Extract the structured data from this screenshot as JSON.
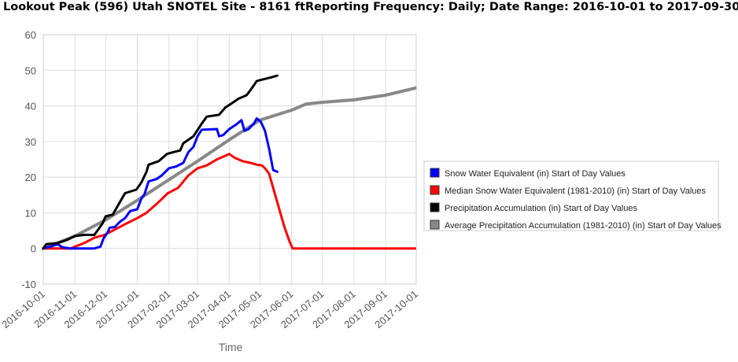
{
  "title": "Lookout Peak (596) Utah  SNOTEL Site - 8161 ftReporting Frequency: Daily; Date Range: 2016-10-01 to 2017-09-30",
  "chart_data": {
    "type": "line",
    "title": "Lookout Peak (596) Utah  SNOTEL Site - 8161 ftReporting Frequency: Daily; Date Range: 2016-10-01 to 2017-09-30",
    "xlabel": "Time",
    "ylabel": "",
    "x_type": "date",
    "xlim": [
      "2016-10-01",
      "2017-10-01"
    ],
    "ylim": [
      -10,
      60
    ],
    "y_ticks": [
      -10,
      0,
      10,
      20,
      30,
      40,
      50,
      60
    ],
    "x_ticks": [
      "2016-10-01",
      "2016-11-01",
      "2016-12-01",
      "2017-01-01",
      "2017-02-01",
      "2017-03-01",
      "2017-04-01",
      "2017-05-01",
      "2017-06-01",
      "2017-07-01",
      "2017-08-01",
      "2017-09-01",
      "2017-10-01"
    ],
    "grid": true,
    "legend_position": "right",
    "series": [
      {
        "name": "Snow Water Equivalent (in) Start of Day Values",
        "color": "#0000ff",
        "points": [
          [
            "2016-10-01",
            0
          ],
          [
            "2016-10-08",
            0.5
          ],
          [
            "2016-10-15",
            1.2
          ],
          [
            "2016-10-20",
            0.3
          ],
          [
            "2016-10-28",
            0
          ],
          [
            "2016-11-10",
            0
          ],
          [
            "2016-11-20",
            0
          ],
          [
            "2016-11-26",
            0.5
          ],
          [
            "2016-11-29",
            2.8
          ],
          [
            "2016-12-03",
            4.5
          ],
          [
            "2016-12-05",
            5.8
          ],
          [
            "2016-12-10",
            6
          ],
          [
            "2016-12-15",
            7.5
          ],
          [
            "2016-12-20",
            8.5
          ],
          [
            "2016-12-25",
            10.5
          ],
          [
            "2017-01-01",
            11
          ],
          [
            "2017-01-05",
            14
          ],
          [
            "2017-01-08",
            15.2
          ],
          [
            "2017-01-12",
            18.8
          ],
          [
            "2017-01-20",
            19.5
          ],
          [
            "2017-01-25",
            20.5
          ],
          [
            "2017-02-01",
            22.5
          ],
          [
            "2017-02-08",
            23
          ],
          [
            "2017-02-15",
            24
          ],
          [
            "2017-02-20",
            27
          ],
          [
            "2017-02-25",
            28.5
          ],
          [
            "2017-03-01",
            31.5
          ],
          [
            "2017-03-05",
            33.3
          ],
          [
            "2017-03-20",
            33.5
          ],
          [
            "2017-03-22",
            31.5
          ],
          [
            "2017-03-26",
            31.8
          ],
          [
            "2017-04-01",
            33.5
          ],
          [
            "2017-04-08",
            34.8
          ],
          [
            "2017-04-13",
            36
          ],
          [
            "2017-04-16",
            33
          ],
          [
            "2017-04-20",
            33.5
          ],
          [
            "2017-04-25",
            35
          ],
          [
            "2017-04-28",
            36.5
          ],
          [
            "2017-05-02",
            35.5
          ],
          [
            "2017-05-06",
            33
          ],
          [
            "2017-05-10",
            28
          ],
          [
            "2017-05-14",
            22
          ],
          [
            "2017-05-18",
            21.5
          ]
        ]
      },
      {
        "name": "Median Snow Water Equivalent (1981-2010) (in) Start of Day Values",
        "color": "#ff0000",
        "points": [
          [
            "2016-10-01",
            0
          ],
          [
            "2016-10-15",
            0
          ],
          [
            "2016-10-28",
            0
          ],
          [
            "2016-11-01",
            0.5
          ],
          [
            "2016-11-10",
            1.5
          ],
          [
            "2016-11-20",
            3
          ],
          [
            "2016-11-30",
            3.8
          ],
          [
            "2016-12-10",
            5.3
          ],
          [
            "2016-12-20",
            6.8
          ],
          [
            "2017-01-01",
            8.5
          ],
          [
            "2017-01-10",
            10
          ],
          [
            "2017-01-20",
            12.5
          ],
          [
            "2017-01-31",
            15.5
          ],
          [
            "2017-02-10",
            17
          ],
          [
            "2017-02-20",
            20.5
          ],
          [
            "2017-03-01",
            22.5
          ],
          [
            "2017-03-10",
            23.3
          ],
          [
            "2017-03-20",
            25
          ],
          [
            "2017-04-01",
            26.5
          ],
          [
            "2017-04-06",
            25.5
          ],
          [
            "2017-04-14",
            24.5
          ],
          [
            "2017-04-22",
            24
          ],
          [
            "2017-04-28",
            23.5
          ],
          [
            "2017-05-03",
            23.3
          ],
          [
            "2017-05-06",
            22.5
          ],
          [
            "2017-05-10",
            21
          ],
          [
            "2017-05-15",
            16
          ],
          [
            "2017-05-20",
            11
          ],
          [
            "2017-05-25",
            6
          ],
          [
            "2017-05-30",
            2
          ],
          [
            "2017-06-02",
            0
          ],
          [
            "2017-07-01",
            0
          ],
          [
            "2017-08-01",
            0
          ],
          [
            "2017-09-30",
            0
          ]
        ]
      },
      {
        "name": "Precipitation Accumulation (in) Start of Day Values",
        "color": "#000000",
        "points": [
          [
            "2016-10-01",
            0
          ],
          [
            "2016-10-04",
            1.2
          ],
          [
            "2016-10-15",
            1.5
          ],
          [
            "2016-10-25",
            2.5
          ],
          [
            "2016-11-01",
            3.5
          ],
          [
            "2016-11-10",
            3.8
          ],
          [
            "2016-11-20",
            3.8
          ],
          [
            "2016-11-28",
            7
          ],
          [
            "2016-12-01",
            9
          ],
          [
            "2016-12-08",
            9.5
          ],
          [
            "2016-12-15",
            13
          ],
          [
            "2016-12-20",
            15.5
          ],
          [
            "2016-12-31",
            16.5
          ],
          [
            "2017-01-05",
            18.5
          ],
          [
            "2017-01-10",
            21.5
          ],
          [
            "2017-01-12",
            23.5
          ],
          [
            "2017-01-22",
            24.5
          ],
          [
            "2017-01-30",
            26.5
          ],
          [
            "2017-02-05",
            27
          ],
          [
            "2017-02-12",
            27.5
          ],
          [
            "2017-02-15",
            29.5
          ],
          [
            "2017-02-25",
            31.5
          ],
          [
            "2017-03-05",
            35
          ],
          [
            "2017-03-10",
            37
          ],
          [
            "2017-03-22",
            37.5
          ],
          [
            "2017-03-28",
            39.5
          ],
          [
            "2017-04-05",
            41
          ],
          [
            "2017-04-10",
            42
          ],
          [
            "2017-04-18",
            43
          ],
          [
            "2017-04-22",
            44.5
          ],
          [
            "2017-04-28",
            47
          ],
          [
            "2017-05-05",
            47.5
          ],
          [
            "2017-05-12",
            48
          ],
          [
            "2017-05-18",
            48.5
          ]
        ]
      },
      {
        "name": "Average Precipitation Accumulation (1981-2010) (in) Start of Day Values",
        "color": "#888888",
        "points": [
          [
            "2016-10-01",
            0
          ],
          [
            "2016-11-01",
            3.5
          ],
          [
            "2016-12-01",
            8
          ],
          [
            "2017-01-01",
            13.5
          ],
          [
            "2017-02-01",
            19.3
          ],
          [
            "2017-03-01",
            24.5
          ],
          [
            "2017-04-01",
            30.5
          ],
          [
            "2017-05-01",
            36
          ],
          [
            "2017-06-01",
            38.8
          ],
          [
            "2017-06-15",
            40.5
          ],
          [
            "2017-07-01",
            41
          ],
          [
            "2017-08-01",
            41.7
          ],
          [
            "2017-09-01",
            43
          ],
          [
            "2017-09-30",
            45
          ]
        ]
      }
    ]
  }
}
